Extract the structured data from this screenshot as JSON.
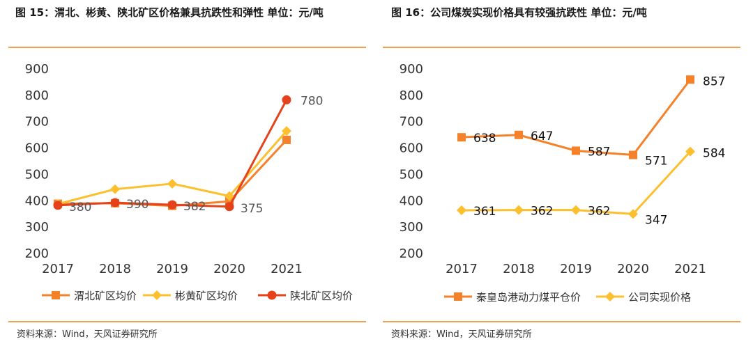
{
  "charts": [
    {
      "title": "图 15：渭北、彬黄、陕北矿区价格兼具抗跌性和弹性 单位：元/吨",
      "source": "资料来源：Wind，天风证券研究所"
    },
    {
      "title": "图 16：公司煤炭实现价格具有较强抗跌性 单位：元/吨",
      "source": "资料来源：Wind，天风证券研究所"
    }
  ],
  "colors": {
    "orange": "#f5822a",
    "yellow": "#fcc02e",
    "red": "#e5421b",
    "rule": "#f0a050"
  },
  "chart_data": [
    {
      "type": "line",
      "title": "图 15：渭北、彬黄、陕北矿区价格兼具抗跌性和弹性 单位：元/吨",
      "categories": [
        "2017",
        "2018",
        "2019",
        "2020",
        "2021"
      ],
      "ylim": [
        200,
        900
      ],
      "yticks": [
        200,
        300,
        400,
        500,
        600,
        700,
        800,
        900
      ],
      "legend_position": "bottom",
      "series": [
        {
          "name": "渭北矿区均价",
          "color": "#f5822a",
          "marker": "square",
          "values": [
            386,
            388,
            378,
            395,
            628
          ]
        },
        {
          "name": "彬黄矿区均价",
          "color": "#fcc02e",
          "marker": "diamond",
          "values": [
            385,
            441,
            462,
            415,
            662
          ]
        },
        {
          "name": "陕北矿区均价",
          "color": "#e5421b",
          "marker": "circle",
          "values": [
            380,
            390,
            382,
            375,
            780
          ]
        }
      ],
      "data_labels": {
        "series": "陕北矿区均价",
        "color": "#555555",
        "values": [
          "380",
          "390",
          "382",
          "375",
          "780"
        ]
      }
    },
    {
      "type": "line",
      "title": "图 16：公司煤炭实现价格具有较强抗跌性 单位：元/吨",
      "categories": [
        "2017",
        "2018",
        "2019",
        "2020",
        "2021"
      ],
      "ylim": [
        200,
        900
      ],
      "yticks": [
        200,
        300,
        400,
        500,
        600,
        700,
        800,
        900
      ],
      "legend_position": "bottom",
      "series": [
        {
          "name": "秦皇岛港动力煤平仓价",
          "color": "#f5822a",
          "marker": "square",
          "values": [
            638,
            647,
            587,
            571,
            857
          ],
          "labels": [
            "638",
            "647",
            "587",
            "571",
            "857"
          ]
        },
        {
          "name": "公司实现价格",
          "color": "#fcc02e",
          "marker": "diamond",
          "values": [
            361,
            362,
            362,
            347,
            584
          ],
          "labels": [
            "361",
            "362",
            "362",
            "347",
            "584"
          ]
        }
      ],
      "data_labels": {
        "color": "#111111"
      }
    }
  ]
}
